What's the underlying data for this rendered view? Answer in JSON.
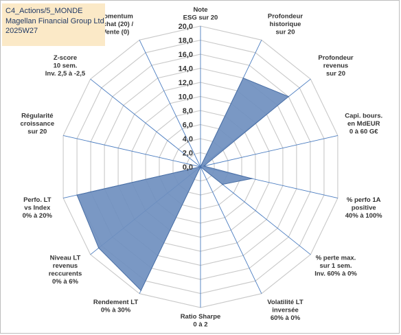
{
  "header": {
    "line1": "C4_Actions/5_MONDE",
    "line2": "Magellan Financial Group Ltd",
    "line3": "2025W27"
  },
  "chart_data": {
    "type": "radar",
    "title": "",
    "rmin": 0,
    "rmax": 20,
    "ticks": [
      "0,0",
      "2,0",
      "4,0",
      "6,0",
      "8,0",
      "10,0",
      "12,0",
      "14,0",
      "16,0",
      "18,0",
      "20,0"
    ],
    "axes": [
      {
        "label": [
          "Note",
          "ESG sur 20"
        ],
        "value": 0
      },
      {
        "label": [
          "Profondeur",
          "historique",
          "sur 20"
        ],
        "value": 14
      },
      {
        "label": [
          "Profondeur",
          "revenus",
          "sur 20"
        ],
        "value": 16
      },
      {
        "label": [
          "Capi. bours.",
          "en MdEUR",
          "0 à 60 G€"
        ],
        "value": 0.5
      },
      {
        "label": [
          "% perfo 1A",
          "positive",
          "40% à 100%"
        ],
        "value": 7.5
      },
      {
        "label": [
          "% perte max.",
          "sur 1 sem.",
          "Inv. 60% à 0%"
        ],
        "value": 4
      },
      {
        "label": [
          "Volatilité LT",
          "inversée",
          "60% à 0%"
        ],
        "value": 0
      },
      {
        "label": [
          "Ratio Sharpe",
          "0 à 2"
        ],
        "value": 0
      },
      {
        "label": [
          "Rendement LT",
          "0% à 30%"
        ],
        "value": 19.5
      },
      {
        "label": [
          "Niveau LT",
          "revenus",
          "reccurents",
          "0% à 6%"
        ],
        "value": 18.5
      },
      {
        "label": [
          "Perfo. LT",
          "vs Index",
          "0% à 20%"
        ],
        "value": 18
      },
      {
        "label": [
          "Régularité",
          "croissance",
          "sur 20"
        ],
        "value": 0
      },
      {
        "label": [
          "Z-score",
          "10 sem.",
          "Inv. 2,5 à -2,5"
        ],
        "value": 0
      },
      {
        "label": [
          "Momentum",
          "Achat (20) /",
          "Vente (0)"
        ],
        "value": 0
      }
    ],
    "grid": true,
    "colors": {
      "fill": "#6f8fbf",
      "stroke": "#4a6fa5",
      "grid": "#c8c8c8",
      "spoke": "#4a7cc0"
    }
  }
}
